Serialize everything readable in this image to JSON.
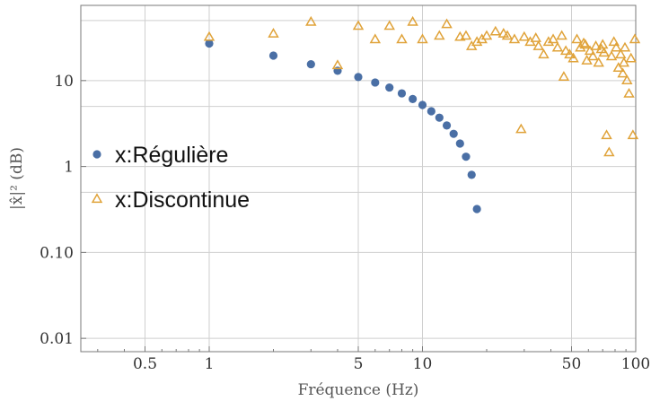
{
  "chart_data": {
    "type": "scatter",
    "xlabel": "Fréquence (Hz)",
    "ylabel": "|x̂|² (dB)",
    "x_scale": "log",
    "y_scale": "log",
    "xlim": [
      0.25,
      100
    ],
    "ylim": [
      0.007,
      75
    ],
    "x_ticks": [
      {
        "value": 0.5,
        "label": "0.5"
      },
      {
        "value": 1,
        "label": "1"
      },
      {
        "value": 5,
        "label": "5"
      },
      {
        "value": 10,
        "label": "10"
      },
      {
        "value": 50,
        "label": "50"
      },
      {
        "value": 100,
        "label": "100"
      }
    ],
    "y_ticks": [
      {
        "value": 0.01,
        "label": "0.01"
      },
      {
        "value": 0.1,
        "label": "0.10"
      },
      {
        "value": 1,
        "label": "1"
      },
      {
        "value": 10,
        "label": "10"
      }
    ],
    "x_gridlines": [
      0.5,
      1,
      5,
      10,
      50,
      100
    ],
    "y_gridlines": [
      0.01,
      0.1,
      0.5,
      1,
      5,
      10,
      50
    ],
    "grid": true,
    "legend_position": "left-middle",
    "series": [
      {
        "name": "x:Régulière",
        "marker": "circle",
        "color": "#4a6fa5",
        "points": [
          [
            1,
            27
          ],
          [
            2,
            19.5
          ],
          [
            3,
            15.5
          ],
          [
            4,
            13
          ],
          [
            5,
            11
          ],
          [
            6,
            9.5
          ],
          [
            7,
            8.3
          ],
          [
            8,
            7.1
          ],
          [
            9,
            6.1
          ],
          [
            10,
            5.2
          ],
          [
            11,
            4.4
          ],
          [
            12,
            3.7
          ],
          [
            13,
            3.0
          ],
          [
            14,
            2.4
          ],
          [
            15,
            1.85
          ],
          [
            16,
            1.3
          ],
          [
            17,
            0.8
          ],
          [
            18,
            0.32
          ]
        ]
      },
      {
        "name": "x:Discontinue",
        "marker": "triangle",
        "color": "#e0a33a",
        "points": [
          [
            1,
            32
          ],
          [
            2,
            35
          ],
          [
            3,
            48
          ],
          [
            4,
            15
          ],
          [
            5,
            43
          ],
          [
            6,
            30
          ],
          [
            7,
            43
          ],
          [
            8,
            30
          ],
          [
            9,
            48
          ],
          [
            10,
            30
          ],
          [
            12,
            33
          ],
          [
            13,
            45
          ],
          [
            15,
            32
          ],
          [
            16,
            33
          ],
          [
            17,
            25
          ],
          [
            18,
            28
          ],
          [
            19,
            30
          ],
          [
            20,
            33
          ],
          [
            22,
            37
          ],
          [
            24,
            35
          ],
          [
            25,
            33
          ],
          [
            27,
            30
          ],
          [
            29,
            2.7
          ],
          [
            30,
            32
          ],
          [
            32,
            28
          ],
          [
            34,
            31
          ],
          [
            35,
            25
          ],
          [
            37,
            20
          ],
          [
            39,
            28
          ],
          [
            41,
            30
          ],
          [
            43,
            24
          ],
          [
            45,
            33
          ],
          [
            47,
            22
          ],
          [
            49,
            20
          ],
          [
            51,
            18
          ],
          [
            53,
            30
          ],
          [
            55,
            24
          ],
          [
            57,
            27
          ],
          [
            59,
            17
          ],
          [
            61,
            22
          ],
          [
            63,
            19
          ],
          [
            65,
            25
          ],
          [
            67,
            16
          ],
          [
            69,
            23
          ],
          [
            71,
            21
          ],
          [
            73,
            2.3
          ],
          [
            75,
            1.45
          ],
          [
            77,
            19
          ],
          [
            79,
            28
          ],
          [
            81,
            24
          ],
          [
            83,
            14
          ],
          [
            85,
            20
          ],
          [
            87,
            12
          ],
          [
            89,
            24
          ],
          [
            91,
            10
          ],
          [
            93,
            7
          ],
          [
            95,
            18
          ],
          [
            97,
            2.3
          ],
          [
            99,
            30
          ],
          [
            46,
            11
          ],
          [
            58,
            26
          ],
          [
            70,
            26
          ],
          [
            88,
            16
          ]
        ]
      }
    ]
  }
}
